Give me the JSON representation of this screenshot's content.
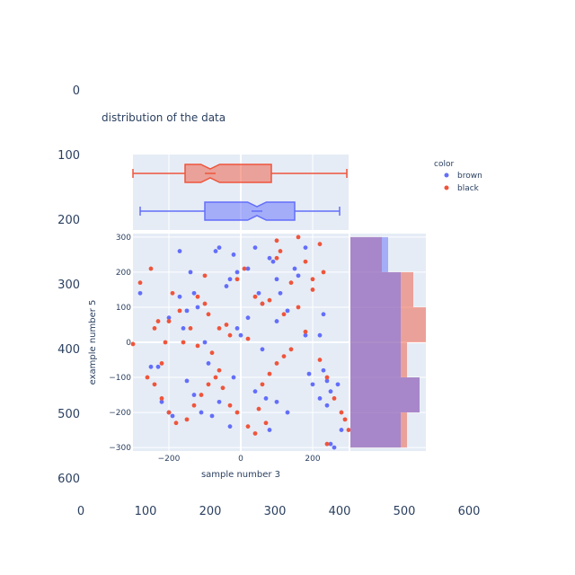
{
  "chart_data": {
    "type": "scatter",
    "title": "distribution of the data",
    "xlabel": "sample number 3",
    "ylabel": "example number 5",
    "x_ticks": [
      "−200",
      "0",
      "200"
    ],
    "y_ticks": [
      "300",
      "200",
      "100",
      "0",
      "−100",
      "−200",
      "−300"
    ],
    "xlim": [
      -300,
      300
    ],
    "ylim": [
      -310,
      310
    ],
    "outer_axes": {
      "x_ticks": [
        "0",
        "100",
        "200",
        "300",
        "400",
        "500",
        "600"
      ],
      "y_ticks": [
        "0",
        "100",
        "200",
        "300",
        "400",
        "500",
        "600"
      ]
    },
    "legend": {
      "title": "color",
      "placement": "top-right",
      "entries": [
        {
          "label": "brown",
          "color": "#636efa"
        },
        {
          "label": "black",
          "color": "#ef553b"
        }
      ]
    },
    "series": [
      {
        "name": "brown",
        "color": "#636efa",
        "points": [
          [
            -280,
            140
          ],
          [
            -200,
            70
          ],
          [
            -170,
            260
          ],
          [
            -170,
            130
          ],
          [
            -160,
            40
          ],
          [
            -150,
            90
          ],
          [
            -140,
            200
          ],
          [
            -130,
            140
          ],
          [
            -120,
            100
          ],
          [
            -100,
            0
          ],
          [
            -70,
            260
          ],
          [
            -60,
            270
          ],
          [
            -40,
            160
          ],
          [
            -30,
            180
          ],
          [
            -20,
            250
          ],
          [
            -10,
            200
          ],
          [
            0,
            20
          ],
          [
            20,
            210
          ],
          [
            40,
            270
          ],
          [
            50,
            140
          ],
          [
            60,
            110
          ],
          [
            80,
            240
          ],
          [
            90,
            230
          ],
          [
            100,
            180
          ],
          [
            110,
            140
          ],
          [
            130,
            90
          ],
          [
            150,
            210
          ],
          [
            160,
            190
          ],
          [
            180,
            270
          ],
          [
            180,
            20
          ],
          [
            190,
            -90
          ],
          [
            200,
            -120
          ],
          [
            220,
            -160
          ],
          [
            240,
            -180
          ],
          [
            250,
            -290
          ],
          [
            260,
            -300
          ],
          [
            280,
            -250
          ],
          [
            -250,
            -70
          ],
          [
            -230,
            -70
          ],
          [
            -220,
            -170
          ],
          [
            -200,
            -200
          ],
          [
            -190,
            -210
          ],
          [
            -150,
            -110
          ],
          [
            -130,
            -150
          ],
          [
            -110,
            -200
          ],
          [
            -80,
            -210
          ],
          [
            -60,
            -170
          ],
          [
            -30,
            -240
          ],
          [
            40,
            -140
          ],
          [
            70,
            -160
          ],
          [
            80,
            -250
          ],
          [
            -90,
            -60
          ],
          [
            60,
            -20
          ],
          [
            -20,
            -100
          ],
          [
            100,
            -170
          ],
          [
            130,
            -200
          ],
          [
            230,
            -80
          ],
          [
            240,
            -110
          ],
          [
            250,
            -140
          ],
          [
            270,
            -120
          ],
          [
            220,
            20
          ],
          [
            230,
            80
          ],
          [
            100,
            60
          ],
          [
            -10,
            40
          ],
          [
            20,
            70
          ]
        ]
      },
      {
        "name": "black",
        "color": "#ef553b",
        "points": [
          [
            -300,
            -5
          ],
          [
            -280,
            170
          ],
          [
            -250,
            210
          ],
          [
            -240,
            40
          ],
          [
            -230,
            60
          ],
          [
            -220,
            -60
          ],
          [
            -210,
            0
          ],
          [
            -200,
            60
          ],
          [
            -190,
            140
          ],
          [
            -170,
            90
          ],
          [
            -160,
            0
          ],
          [
            -140,
            40
          ],
          [
            -120,
            -10
          ],
          [
            -100,
            190
          ],
          [
            -90,
            80
          ],
          [
            -80,
            -30
          ],
          [
            -60,
            -80
          ],
          [
            -40,
            50
          ],
          [
            -30,
            20
          ],
          [
            -10,
            180
          ],
          [
            10,
            210
          ],
          [
            20,
            10
          ],
          [
            40,
            130
          ],
          [
            60,
            110
          ],
          [
            80,
            120
          ],
          [
            100,
            240
          ],
          [
            110,
            260
          ],
          [
            120,
            80
          ],
          [
            140,
            170
          ],
          [
            160,
            100
          ],
          [
            180,
            30
          ],
          [
            200,
            150
          ],
          [
            220,
            -50
          ],
          [
            240,
            -100
          ],
          [
            260,
            -160
          ],
          [
            280,
            -200
          ],
          [
            290,
            -220
          ],
          [
            300,
            -250
          ],
          [
            220,
            280
          ],
          [
            -260,
            -100
          ],
          [
            -240,
            -120
          ],
          [
            -220,
            -160
          ],
          [
            -200,
            -200
          ],
          [
            -180,
            -230
          ],
          [
            -150,
            -220
          ],
          [
            -130,
            -180
          ],
          [
            -110,
            -150
          ],
          [
            -90,
            -120
          ],
          [
            -70,
            -100
          ],
          [
            -50,
            -130
          ],
          [
            -30,
            -180
          ],
          [
            -10,
            -200
          ],
          [
            20,
            -240
          ],
          [
            40,
            -260
          ],
          [
            60,
            -120
          ],
          [
            80,
            -90
          ],
          [
            100,
            -60
          ],
          [
            120,
            -40
          ],
          [
            140,
            -20
          ],
          [
            160,
            300
          ],
          [
            180,
            230
          ],
          [
            200,
            180
          ],
          [
            230,
            200
          ],
          [
            240,
            -290
          ],
          [
            100,
            290
          ],
          [
            -100,
            110
          ],
          [
            -60,
            40
          ],
          [
            -120,
            130
          ],
          [
            50,
            -190
          ],
          [
            70,
            -230
          ]
        ]
      }
    ],
    "box_marginal": [
      {
        "name": "black",
        "color": "#ef553b",
        "min": -300,
        "q1": -155,
        "median": -85,
        "notch_half": 26,
        "q3": 85,
        "max": 295
      },
      {
        "name": "brown",
        "color": "#636efa",
        "min": -280,
        "q1": -100,
        "median": 45,
        "notch_half": 26,
        "q3": 150,
        "max": 275
      }
    ],
    "histogram_marginal": {
      "bins": [
        {
          "y0": 200,
          "y1": 300,
          "brown": 6,
          "black": 5
        },
        {
          "y0": 100,
          "y1": 200,
          "brown": 8,
          "black": 10
        },
        {
          "y0": 0,
          "y1": 100,
          "brown": 8,
          "black": 12
        },
        {
          "y0": -100,
          "y1": 0,
          "brown": 8,
          "black": 9
        },
        {
          "y0": -200,
          "y1": -100,
          "brown": 11,
          "black": 11
        },
        {
          "y0": -300,
          "y1": -200,
          "brown": 8,
          "black": 9
        }
      ],
      "max_count": 12
    }
  }
}
